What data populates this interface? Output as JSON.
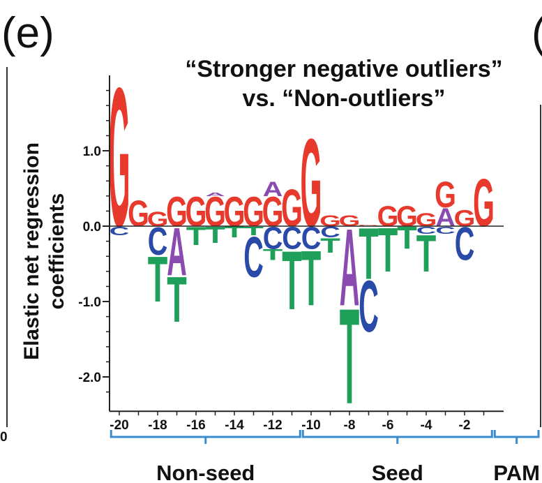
{
  "panel_label": "(e)",
  "neighbor_panel_label": "(",
  "left_edge_tick": "0",
  "colors": {
    "A": "#8a4bb0",
    "C": "#2a4aa8",
    "G": "#e83a2c",
    "T": "#1fa05a",
    "brace": "#3a8ccf"
  },
  "chart_data": {
    "type": "sequence-logo",
    "title": [
      "“Stronger negative outliers”",
      "vs. “Non-outliers”"
    ],
    "ylabel": [
      "Elastic net regression",
      "coefficients"
    ],
    "ylim": [
      -2.4,
      2.0
    ],
    "yticks": [
      {
        "value": 1.0,
        "label": "1.0"
      },
      {
        "value": 0.0,
        "label": "0.0"
      },
      {
        "value": -1.0,
        "label": "-1.0"
      },
      {
        "value": -2.0,
        "label": "-2.0"
      }
    ],
    "xticks": [
      {
        "pos": -20,
        "label": "-20"
      },
      {
        "pos": -18,
        "label": "-18"
      },
      {
        "pos": -16,
        "label": "-16"
      },
      {
        "pos": -14,
        "label": "-14"
      },
      {
        "pos": -12,
        "label": "-12"
      },
      {
        "pos": -10,
        "label": "-10"
      },
      {
        "pos": -8,
        "label": "-8"
      },
      {
        "pos": -6,
        "label": "-6"
      },
      {
        "pos": -4,
        "label": "-4"
      },
      {
        "pos": -2,
        "label": "-2"
      }
    ],
    "regions": [
      {
        "label": "Non-seed",
        "from": -20,
        "to": -11
      },
      {
        "label": "Seed",
        "from": -10,
        "to": -1
      },
      {
        "label": "PAM",
        "from": 0,
        "to": 2
      }
    ],
    "positions": [
      {
        "pos": -20,
        "above": [
          {
            "base": "G",
            "value": 1.9
          }
        ],
        "below": [
          {
            "base": "C",
            "value": -0.12
          }
        ]
      },
      {
        "pos": -19,
        "above": [
          {
            "base": "G",
            "value": 0.35
          }
        ],
        "below": []
      },
      {
        "pos": -18,
        "above": [
          {
            "base": "G",
            "value": 0.2
          }
        ],
        "below": [
          {
            "base": "C",
            "value": -0.38
          },
          {
            "base": "T",
            "value": -0.62
          }
        ]
      },
      {
        "pos": -17,
        "above": [
          {
            "base": "G",
            "value": 0.4
          }
        ],
        "below": [
          {
            "base": "A",
            "value": -0.65
          },
          {
            "base": "T",
            "value": -0.62
          }
        ]
      },
      {
        "pos": -16,
        "above": [
          {
            "base": "G",
            "value": 0.4
          }
        ],
        "below": [
          {
            "base": "T",
            "value": -0.25
          }
        ]
      },
      {
        "pos": -15,
        "above": [
          {
            "base": "G",
            "value": 0.4
          },
          {
            "base": "A",
            "value": 0.05
          }
        ],
        "below": [
          {
            "base": "T",
            "value": -0.22
          }
        ]
      },
      {
        "pos": -14,
        "above": [
          {
            "base": "G",
            "value": 0.4
          }
        ],
        "below": [
          {
            "base": "T",
            "value": -0.15
          }
        ]
      },
      {
        "pos": -13,
        "above": [
          {
            "base": "G",
            "value": 0.4
          }
        ],
        "below": [
          {
            "base": "T",
            "value": -0.12
          },
          {
            "base": "C",
            "value": -0.55
          }
        ]
      },
      {
        "pos": -12,
        "above": [
          {
            "base": "G",
            "value": 0.4
          },
          {
            "base": "A",
            "value": 0.2
          }
        ],
        "below": [
          {
            "base": "C",
            "value": -0.3
          },
          {
            "base": "T",
            "value": -0.15
          }
        ]
      },
      {
        "pos": -11,
        "above": [
          {
            "base": "G",
            "value": 0.5
          }
        ],
        "below": [
          {
            "base": "C",
            "value": -0.3
          },
          {
            "base": "T",
            "value": -0.8
          }
        ]
      },
      {
        "pos": -10,
        "above": [
          {
            "base": "G",
            "value": 1.2
          }
        ],
        "below": [
          {
            "base": "C",
            "value": -0.3
          },
          {
            "base": "T",
            "value": -0.75
          }
        ]
      },
      {
        "pos": -9,
        "above": [
          {
            "base": "G",
            "value": 0.15
          }
        ],
        "below": [
          {
            "base": "C",
            "value": -0.15
          },
          {
            "base": "T",
            "value": -0.2
          }
        ]
      },
      {
        "pos": -8,
        "above": [
          {
            "base": "G",
            "value": 0.15
          }
        ],
        "below": [
          {
            "base": "A",
            "value": -1.05
          },
          {
            "base": "T",
            "value": -1.3
          }
        ]
      },
      {
        "pos": -7,
        "above": [
          {
            "base": "G",
            "value": 0.02
          }
        ],
        "below": [
          {
            "base": "T",
            "value": -0.7
          },
          {
            "base": "C",
            "value": -0.7
          }
        ]
      },
      {
        "pos": -6,
        "above": [
          {
            "base": "G",
            "value": 0.28
          }
        ],
        "below": [
          {
            "base": "T",
            "value": -0.6
          }
        ]
      },
      {
        "pos": -5,
        "above": [
          {
            "base": "G",
            "value": 0.28
          }
        ],
        "below": [
          {
            "base": "T",
            "value": -0.3
          }
        ]
      },
      {
        "pos": -4,
        "above": [
          {
            "base": "G",
            "value": 0.18
          }
        ],
        "below": [
          {
            "base": "C",
            "value": -0.1
          },
          {
            "base": "T",
            "value": -0.5
          }
        ]
      },
      {
        "pos": -3,
        "above": [
          {
            "base": "A",
            "value": 0.25
          },
          {
            "base": "G",
            "value": 0.35
          }
        ],
        "below": [
          {
            "base": "C",
            "value": -0.1
          }
        ]
      },
      {
        "pos": -2,
        "above": [
          {
            "base": "G",
            "value": 0.22
          }
        ],
        "below": [
          {
            "base": "C",
            "value": -0.45
          }
        ]
      },
      {
        "pos": -1,
        "above": [
          {
            "base": "G",
            "value": 0.65
          }
        ],
        "below": []
      }
    ]
  }
}
